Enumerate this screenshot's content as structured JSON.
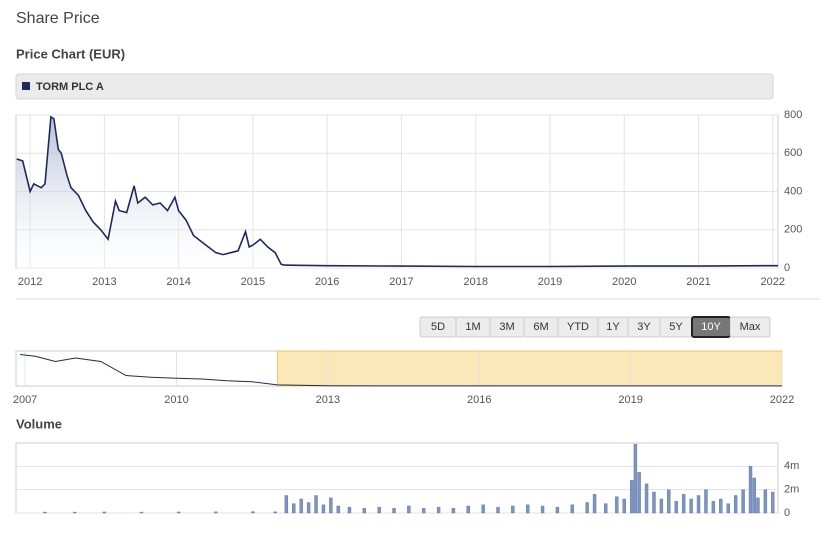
{
  "header": {
    "title": "Share Price"
  },
  "chart_data": [
    {
      "type": "line",
      "title": "Price Chart (EUR)",
      "x": [
        2011.82,
        2011.9,
        2012.0,
        2012.05,
        2012.1,
        2012.15,
        2012.2,
        2012.28,
        2012.32,
        2012.38,
        2012.42,
        2012.5,
        2012.55,
        2012.65,
        2012.75,
        2012.85,
        2012.95,
        2013.05,
        2013.15,
        2013.2,
        2013.3,
        2013.4,
        2013.45,
        2013.55,
        2013.65,
        2013.75,
        2013.85,
        2013.95,
        2014.0,
        2014.1,
        2014.2,
        2014.3,
        2014.4,
        2014.5,
        2014.6,
        2014.7,
        2014.8,
        2014.9,
        2014.95,
        2015.0,
        2015.1,
        2015.2,
        2015.3,
        2015.38,
        2015.42,
        2015.6,
        2016.0,
        2017.0,
        2018.0,
        2019.0,
        2020.0,
        2021.0,
        2021.9,
        2022.07
      ],
      "series": [
        {
          "name": "TORM PLC A",
          "color": "#1f2a5c",
          "values": [
            570,
            560,
            400,
            440,
            430,
            420,
            440,
            790,
            780,
            620,
            600,
            480,
            420,
            380,
            300,
            240,
            200,
            150,
            350,
            300,
            290,
            430,
            340,
            370,
            330,
            340,
            300,
            370,
            300,
            250,
            170,
            140,
            110,
            80,
            70,
            80,
            90,
            190,
            110,
            120,
            150,
            110,
            80,
            20,
            15,
            14,
            12,
            10,
            8,
            8,
            10,
            10,
            12,
            12
          ]
        }
      ],
      "xlim": [
        2011.81,
        2022.07
      ],
      "xticks": [
        2012,
        2013,
        2014,
        2015,
        2016,
        2017,
        2018,
        2019,
        2020,
        2021,
        2022
      ],
      "ylim": [
        0,
        800
      ],
      "yticks": [
        0,
        200,
        400,
        600,
        800
      ],
      "grid": true
    },
    {
      "type": "line",
      "x": [
        2006.9,
        2007.2,
        2007.6,
        2008.0,
        2008.5,
        2009.0,
        2009.5,
        2010.0,
        2010.5,
        2011.0,
        2011.5,
        2012.0,
        2013.0,
        2016.0,
        2019.0,
        2022.0
      ],
      "series": [
        {
          "name": "TORM PLC A",
          "color": "#1f2a5c",
          "values": [
            9000,
            8500,
            7000,
            8000,
            7000,
            3000,
            2500,
            2200,
            2000,
            1500,
            1200,
            300,
            60,
            20,
            15,
            15
          ]
        }
      ],
      "xlim": [
        2006.82,
        2022.0
      ],
      "xticks": [
        2007,
        2010,
        2013,
        2016,
        2019,
        2022
      ],
      "ylim": [
        0,
        10000
      ],
      "selected_range": [
        2012,
        2022
      ]
    },
    {
      "type": "bar",
      "title": "Volume",
      "color": "#7d93c0",
      "x": [
        2012.2,
        2012.6,
        2013.0,
        2013.5,
        2014.0,
        2014.5,
        2015.0,
        2015.3,
        2015.45,
        2015.55,
        2015.65,
        2015.75,
        2015.85,
        2015.95,
        2016.05,
        2016.15,
        2016.3,
        2016.5,
        2016.7,
        2016.9,
        2017.1,
        2017.3,
        2017.5,
        2017.7,
        2017.9,
        2018.1,
        2018.3,
        2018.5,
        2018.7,
        2018.9,
        2019.1,
        2019.3,
        2019.5,
        2019.6,
        2019.75,
        2019.9,
        2020.0,
        2020.1,
        2020.15,
        2020.2,
        2020.3,
        2020.4,
        2020.5,
        2020.6,
        2020.7,
        2020.8,
        2020.9,
        2021.0,
        2021.1,
        2021.2,
        2021.3,
        2021.4,
        2021.5,
        2021.6,
        2021.7,
        2021.75,
        2021.8,
        2021.9,
        2022.0
      ],
      "values": [
        80000,
        80000,
        90000,
        80000,
        90000,
        100000,
        120000,
        100000,
        1500000,
        800000,
        1200000,
        900000,
        1500000,
        700000,
        1300000,
        600000,
        500000,
        400000,
        500000,
        400000,
        600000,
        400000,
        500000,
        400000,
        600000,
        700000,
        500000,
        600000,
        700000,
        600000,
        500000,
        700000,
        900000,
        1600000,
        800000,
        1400000,
        1200000,
        2800000,
        5900000,
        3500000,
        2500000,
        1800000,
        1200000,
        2000000,
        1000000,
        1600000,
        1200000,
        1500000,
        2000000,
        1000000,
        1200000,
        800000,
        1500000,
        2000000,
        4000000,
        3000000,
        1300000,
        2000000,
        1800000
      ],
      "xlim": [
        2011.81,
        2022.07
      ],
      "ylim": [
        0,
        6000000
      ],
      "yticks": [
        0,
        {
          "value": 2000000,
          "label": "2m"
        },
        {
          "value": 4000000,
          "label": "4m"
        }
      ],
      "grid": true
    }
  ],
  "range_buttons": {
    "labels": [
      "5D",
      "1M",
      "3M",
      "6M",
      "YTD",
      "1Y",
      "3Y",
      "5Y",
      "10Y",
      "Max"
    ],
    "selected": 8
  }
}
